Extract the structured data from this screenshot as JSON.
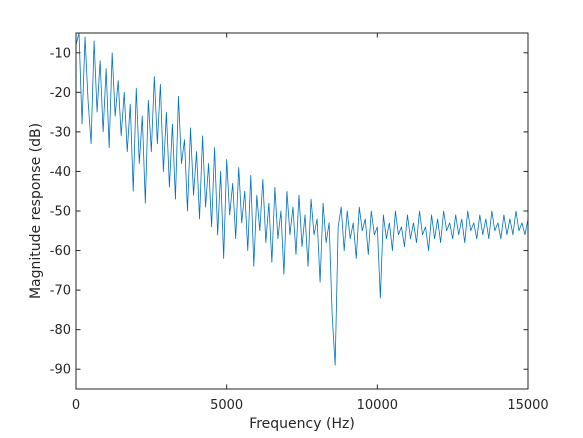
{
  "chart_data": {
    "type": "line",
    "title": "",
    "xlabel": "Frequency (Hz)",
    "ylabel": "Magnitude response (dB)",
    "xlim": [
      0,
      15000
    ],
    "ylim": [
      -95,
      -5
    ],
    "xticks": [
      0,
      5000,
      10000,
      15000
    ],
    "xtick_labels": [
      "0",
      "5000",
      "10000",
      "15000"
    ],
    "yticks": [
      -90,
      -80,
      -70,
      -60,
      -50,
      -40,
      -30,
      -20,
      -10
    ],
    "ytick_labels": [
      "-90",
      "-80",
      "-70",
      "-60",
      "-50",
      "-40",
      "-30",
      "-20",
      "-10"
    ],
    "grid": false,
    "legend": "none",
    "series": [
      {
        "color": "#0072BD",
        "x": [
          0,
          100,
          200,
          300,
          400,
          500,
          600,
          700,
          800,
          900,
          1000,
          1100,
          1200,
          1300,
          1400,
          1500,
          1600,
          1700,
          1800,
          1900,
          2000,
          2100,
          2200,
          2300,
          2400,
          2500,
          2600,
          2700,
          2800,
          2900,
          3000,
          3100,
          3200,
          3300,
          3400,
          3500,
          3600,
          3700,
          3800,
          3900,
          4000,
          4100,
          4200,
          4300,
          4400,
          4500,
          4600,
          4700,
          4800,
          4900,
          5000,
          5100,
          5200,
          5300,
          5400,
          5500,
          5600,
          5700,
          5800,
          5900,
          6000,
          6100,
          6200,
          6300,
          6400,
          6500,
          6600,
          6700,
          6800,
          6900,
          7000,
          7100,
          7200,
          7300,
          7400,
          7500,
          7600,
          7700,
          7800,
          7900,
          8000,
          8100,
          8200,
          8300,
          8400,
          8500,
          8600,
          8700,
          8800,
          8900,
          9000,
          9100,
          9200,
          9300,
          9400,
          9500,
          9600,
          9700,
          9800,
          9900,
          10000,
          10100,
          10200,
          10300,
          10400,
          10500,
          10600,
          10700,
          10800,
          10900,
          11000,
          11100,
          11200,
          11300,
          11400,
          11500,
          11600,
          11700,
          11800,
          11900,
          12000,
          12100,
          12200,
          12300,
          12400,
          12500,
          12600,
          12700,
          12800,
          12900,
          13000,
          13100,
          13200,
          13300,
          13400,
          13500,
          13600,
          13700,
          13800,
          13900,
          14000,
          14100,
          14200,
          14300,
          14400,
          14500,
          14600,
          14700,
          14800,
          14900,
          15000
        ],
        "y": [
          -8,
          -5,
          -28,
          -6,
          -22,
          -33,
          -7,
          -25,
          -12,
          -30,
          -14,
          -34,
          -10,
          -26,
          -17,
          -31,
          -20,
          -35,
          -23,
          -45,
          -19,
          -38,
          -26,
          -48,
          -22,
          -35,
          -16,
          -33,
          -18,
          -40,
          -25,
          -44,
          -28,
          -47,
          -21,
          -38,
          -32,
          -50,
          -29,
          -46,
          -35,
          -52,
          -31,
          -49,
          -38,
          -54,
          -34,
          -56,
          -40,
          -62,
          -37,
          -51,
          -43,
          -57,
          -39,
          -53,
          -45,
          -60,
          -41,
          -64,
          -46,
          -55,
          -42,
          -58,
          -48,
          -63,
          -44,
          -57,
          -50,
          -66,
          -45,
          -56,
          -49,
          -61,
          -46,
          -59,
          -51,
          -64,
          -47,
          -56,
          -52,
          -68,
          -48,
          -58,
          -53,
          -76,
          -89,
          -54,
          -49,
          -60,
          -50,
          -57,
          -53,
          -62,
          -49,
          -55,
          -52,
          -61,
          -50,
          -56,
          -54,
          -72,
          -51,
          -57,
          -53,
          -60,
          -50,
          -56,
          -54,
          -59,
          -51,
          -57,
          -53,
          -58,
          -50,
          -56,
          -54,
          -60,
          -51,
          -57,
          -52,
          -58,
          -50,
          -55,
          -53,
          -57,
          -51,
          -56,
          -52,
          -58,
          -50,
          -55,
          -53,
          -57,
          -51,
          -56,
          -52,
          -57,
          -50,
          -55,
          -53,
          -57,
          -51,
          -56,
          -52,
          -56,
          -50,
          -55,
          -53,
          -56,
          -52
        ]
      }
    ]
  }
}
